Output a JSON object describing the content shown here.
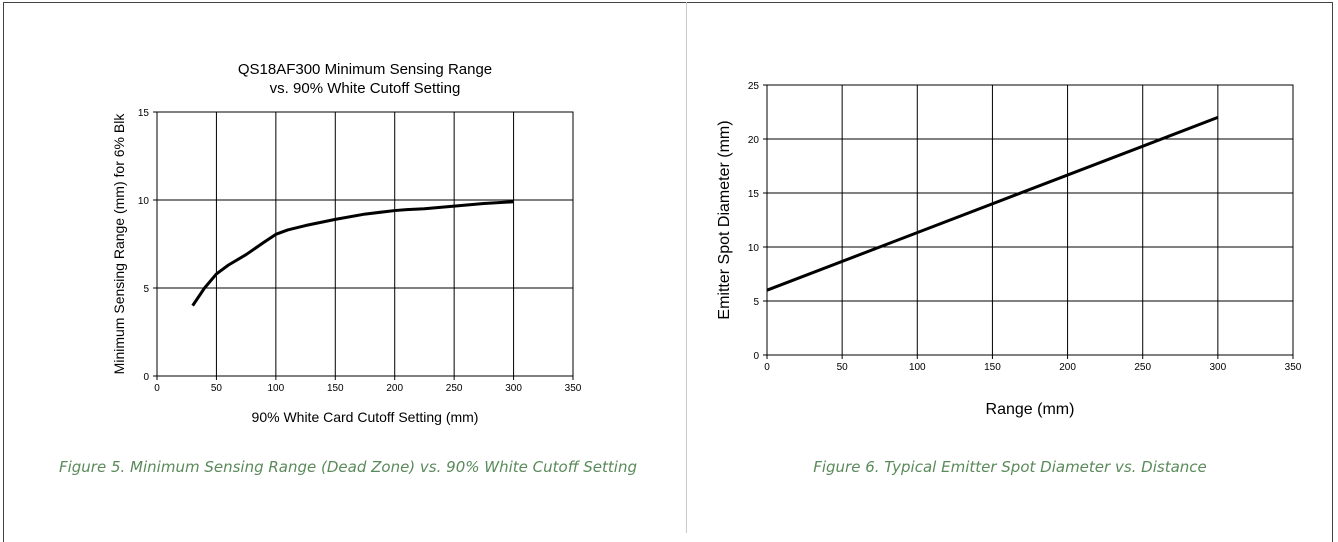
{
  "chart_data": [
    {
      "type": "line",
      "title_line1": "QS18AF300 Minimum Sensing Range",
      "title_line2": "vs. 90% White Cutoff Setting",
      "xlabel": "90% White Card Cutoff Setting (mm)",
      "ylabel": "Minimum Sensing Range (mm) for 6% Blk",
      "xlim": [
        0,
        350
      ],
      "ylim": [
        0,
        15
      ],
      "xticks": [
        0,
        50,
        100,
        150,
        200,
        250,
        300,
        350
      ],
      "yticks": [
        0,
        5,
        10,
        15
      ],
      "grid": true,
      "series": [
        {
          "x": [
            30,
            40,
            50,
            60,
            75,
            90,
            100,
            110,
            125,
            150,
            175,
            200,
            210,
            225,
            250,
            275,
            300
          ],
          "y": [
            4.0,
            5.0,
            5.8,
            6.3,
            6.9,
            7.6,
            8.05,
            8.3,
            8.55,
            8.9,
            9.2,
            9.4,
            9.45,
            9.5,
            9.65,
            9.8,
            9.9
          ]
        }
      ],
      "caption": "Figure 5. Minimum Sensing Range (Dead Zone) vs. 90% White Cutoff Setting"
    },
    {
      "type": "line",
      "xlabel": "Range (mm)",
      "ylabel": "Emitter Spot Diameter (mm)",
      "xlim": [
        0,
        350
      ],
      "ylim": [
        0,
        25
      ],
      "xticks": [
        0,
        50,
        100,
        150,
        200,
        250,
        300,
        350
      ],
      "yticks": [
        0,
        5,
        10,
        15,
        20,
        25
      ],
      "grid": true,
      "series": [
        {
          "x": [
            0,
            300
          ],
          "y": [
            6,
            22
          ]
        }
      ],
      "caption": "Figure 6. Typical Emitter Spot Diameter vs. Distance"
    }
  ]
}
